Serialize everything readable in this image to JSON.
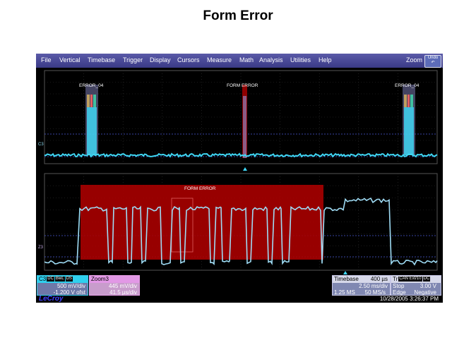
{
  "slide": {
    "title": "Form Error"
  },
  "menu": {
    "items": [
      "File",
      "Vertical",
      "Timebase",
      "Trigger",
      "Display",
      "Cursors",
      "Measure",
      "Math",
      "Analysis",
      "Utilities",
      "Help"
    ],
    "zoom_label": "Zoom",
    "undo_label": "Undo"
  },
  "top_grid": {
    "channel_label": "C3",
    "annotations": [
      "ERROR_04",
      "FORM ERROR",
      "ERROR_04"
    ]
  },
  "bottom_grid": {
    "channel_label": "Z3",
    "annotation": "FORM ERROR"
  },
  "c3_box": {
    "name": "C3",
    "tags": [
      "DC",
      "BwL",
      "DS"
    ],
    "vdiv": "500 mV/div",
    "offset": "-1.200 V ofst"
  },
  "zoom3_box": {
    "name": "Zoom3",
    "vdiv": "445 mV/div",
    "tdiv": "41.5 µs/div"
  },
  "timebase_box": {
    "label": "Timebase",
    "delay": "400 µs",
    "tdiv": "2.50 ms/div",
    "samples": "1.25 MS",
    "rate": "50 MS/s"
  },
  "trigger_box": {
    "label": "Tr",
    "source": "CAN Ext/10",
    "coupling": "DC",
    "mode_label": "Stop",
    "level": "3.00 V",
    "edge_label": "Edge",
    "slope": "Negative"
  },
  "footer": {
    "logo": "LeCroy",
    "timestamp": "10/28/2005 3:26:37 PM"
  },
  "colors": {
    "menubar": "#4646a0",
    "trace": "#3fd6f4",
    "zoom_trace": "#9fdcf5",
    "error_fill": "#a80000",
    "grid": "#3c3c3c"
  }
}
